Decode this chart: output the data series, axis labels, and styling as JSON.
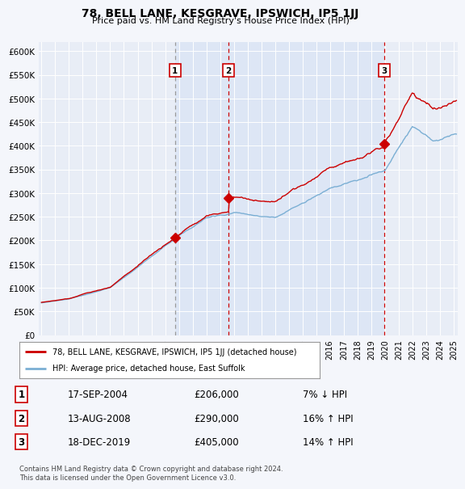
{
  "title": "78, BELL LANE, KESGRAVE, IPSWICH, IP5 1JJ",
  "subtitle": "Price paid vs. HM Land Registry's House Price Index (HPI)",
  "legend_line1": "78, BELL LANE, KESGRAVE, IPSWICH, IP5 1JJ (detached house)",
  "legend_line2": "HPI: Average price, detached house, East Suffolk",
  "sale_info": [
    [
      "1",
      "17-SEP-2004",
      "£206,000",
      "7% ↓ HPI"
    ],
    [
      "2",
      "13-AUG-2008",
      "£290,000",
      "16% ↑ HPI"
    ],
    [
      "3",
      "18-DEC-2019",
      "£405,000",
      "14% ↑ HPI"
    ]
  ],
  "footer": "Contains HM Land Registry data © Crown copyright and database right 2024.\nThis data is licensed under the Open Government Licence v3.0.",
  "hpi_color": "#7bafd4",
  "price_color": "#cc0000",
  "vline1_color": "#999999",
  "vline23_color": "#cc0000",
  "background_color": "#f4f6fb",
  "plot_bg_color": "#e8edf6",
  "shade_color": "#dce6f5",
  "ylim": [
    0,
    620000
  ],
  "yticks": [
    0,
    50000,
    100000,
    150000,
    200000,
    250000,
    300000,
    350000,
    400000,
    450000,
    500000,
    550000,
    600000
  ],
  "sale_years": [
    2004.72,
    2008.62,
    2019.96
  ],
  "sale_prices": [
    206000,
    290000,
    405000
  ],
  "sale_labels": [
    "1",
    "2",
    "3"
  ]
}
